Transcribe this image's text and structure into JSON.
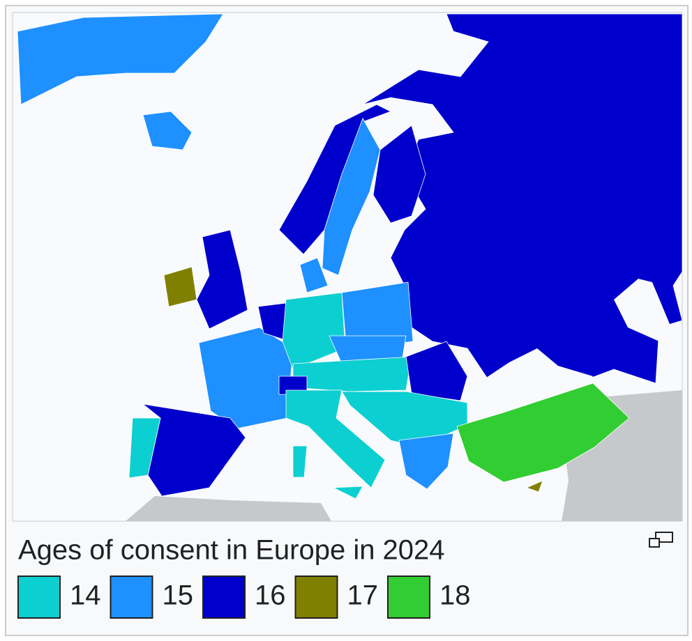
{
  "caption": "Ages of consent in Europe in 2024",
  "legend": [
    {
      "label": "14",
      "color": "#0ccfd1"
    },
    {
      "label": "15",
      "color": "#1e90ff"
    },
    {
      "label": "16",
      "color": "#0000cd"
    },
    {
      "label": "17",
      "color": "#808000"
    },
    {
      "label": "18",
      "color": "#32cd32"
    }
  ]
}
